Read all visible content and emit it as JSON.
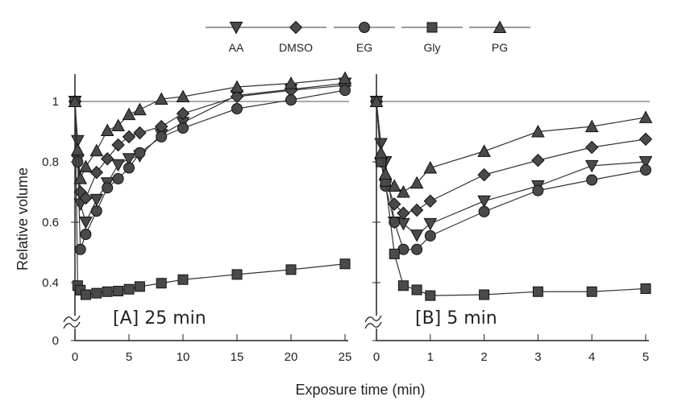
{
  "chart_data": [
    {
      "type": "line",
      "panel_label": "[A] 25 min",
      "xlabel": "Exposure time (min)",
      "ylabel": "Relative volume",
      "xlim": [
        0,
        25
      ],
      "ylim": [
        0,
        1.1
      ],
      "y_axis_break": [
        0.05,
        0.35
      ],
      "x_ticks": [
        "0",
        "5",
        "10",
        "15",
        "20",
        "25"
      ],
      "y_ticks": [
        "0",
        "0.4",
        "0.6",
        "0.8",
        "1"
      ],
      "reference_line": 1,
      "legend": "top",
      "series": [
        {
          "name": "AA",
          "marker": "triangle-down",
          "x": [
            0,
            0.25,
            0.5,
            1,
            2,
            3,
            4,
            5,
            6,
            8,
            10,
            15,
            20,
            25
          ],
          "y": [
            1,
            0.87,
            0.66,
            0.6,
            0.675,
            0.73,
            0.79,
            0.81,
            0.82,
            0.89,
            0.93,
            1.02,
            1.04,
            1.06
          ]
        },
        {
          "name": "DMSO",
          "marker": "diamond",
          "x": [
            0,
            0.25,
            0.5,
            1,
            2,
            3,
            4,
            5,
            6,
            8,
            10,
            15,
            20,
            25
          ],
          "y": [
            1,
            0.82,
            0.7,
            0.68,
            0.765,
            0.81,
            0.856,
            0.883,
            0.896,
            0.917,
            0.96,
            1.016,
            1.037,
            1.053
          ]
        },
        {
          "name": "EG",
          "marker": "circle",
          "x": [
            0,
            0.25,
            0.5,
            1,
            2,
            3,
            4,
            5,
            6,
            8,
            10,
            15,
            20,
            25
          ],
          "y": [
            1,
            0.8,
            0.51,
            0.56,
            0.637,
            0.714,
            0.744,
            0.78,
            0.83,
            0.883,
            0.912,
            0.976,
            1.005,
            1.037
          ]
        },
        {
          "name": "Gly",
          "marker": "square",
          "x": [
            0,
            0.25,
            0.5,
            1,
            2,
            3,
            4,
            5,
            6,
            8,
            10,
            15,
            20,
            25
          ],
          "y": [
            1,
            0.39,
            0.375,
            0.36,
            0.365,
            0.37,
            0.372,
            0.378,
            0.387,
            0.398,
            0.41,
            0.427,
            0.443,
            0.462
          ]
        },
        {
          "name": "PG",
          "marker": "triangle-up",
          "x": [
            0,
            0.25,
            0.5,
            1,
            2,
            3,
            4,
            5,
            6,
            8,
            10,
            15,
            20,
            25
          ],
          "y": [
            1,
            0.84,
            0.745,
            0.784,
            0.837,
            0.904,
            0.92,
            0.957,
            0.973,
            1.008,
            1.016,
            1.048,
            1.06,
            1.077
          ]
        }
      ]
    },
    {
      "type": "line",
      "panel_label": "[B] 5 min",
      "xlim": [
        0,
        5
      ],
      "ylim": [
        0,
        1.1
      ],
      "y_axis_break": [
        0.05,
        0.35
      ],
      "x_ticks": [
        "0",
        "1",
        "2",
        "3",
        "4",
        "5"
      ],
      "reference_line": 1,
      "series": [
        {
          "name": "AA",
          "marker": "triangle-down",
          "x": [
            0,
            0.083,
            0.167,
            0.333,
            0.5,
            0.75,
            1,
            2,
            3,
            4,
            5
          ],
          "y": [
            1,
            0.86,
            0.8,
            0.6,
            0.595,
            0.557,
            0.595,
            0.67,
            0.72,
            0.787,
            0.8
          ]
        },
        {
          "name": "DMSO",
          "marker": "diamond",
          "x": [
            0,
            0.083,
            0.167,
            0.333,
            0.5,
            0.75,
            1,
            2,
            3,
            4,
            5
          ],
          "y": [
            1,
            0.81,
            0.74,
            0.66,
            0.63,
            0.64,
            0.67,
            0.757,
            0.805,
            0.848,
            0.875
          ]
        },
        {
          "name": "EG",
          "marker": "circle",
          "x": [
            0,
            0.083,
            0.167,
            0.333,
            0.5,
            0.75,
            1,
            2,
            3,
            4,
            5
          ],
          "y": [
            1,
            0.8,
            0.72,
            0.6,
            0.51,
            0.51,
            0.555,
            0.635,
            0.705,
            0.74,
            0.773
          ]
        },
        {
          "name": "Gly",
          "marker": "square",
          "x": [
            0,
            0.083,
            0.167,
            0.333,
            0.5,
            0.75,
            1,
            2,
            3,
            4,
            5
          ],
          "y": [
            1,
            0.8,
            0.735,
            0.495,
            0.39,
            0.376,
            0.357,
            0.36,
            0.37,
            0.37,
            0.38
          ]
        },
        {
          "name": "PG",
          "marker": "triangle-up",
          "x": [
            0,
            0.083,
            0.167,
            0.333,
            0.5,
            0.75,
            1,
            2,
            3,
            4,
            5
          ],
          "y": [
            1,
            0.83,
            0.76,
            0.72,
            0.7,
            0.73,
            0.78,
            0.835,
            0.9,
            0.917,
            0.947
          ]
        }
      ]
    }
  ],
  "colors": {
    "marker_fill": "#4a4a4a",
    "line": "#333333",
    "axis": "#222222"
  }
}
